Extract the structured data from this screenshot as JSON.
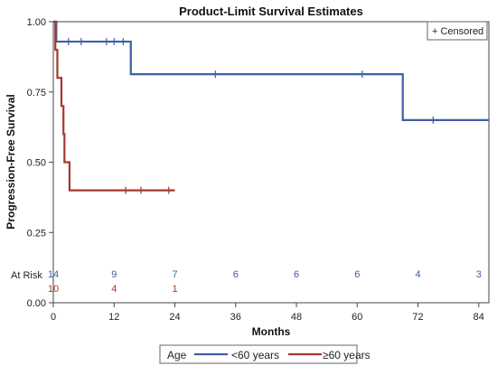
{
  "chart_data": {
    "type": "line",
    "title": "Product-Limit Survival Estimates",
    "xlabel": "Months",
    "ylabel": "Progression-Free Survival",
    "xlim": [
      0,
      86
    ],
    "ylim": [
      0,
      1
    ],
    "x_ticks": [
      0,
      12,
      24,
      36,
      48,
      60,
      72,
      84
    ],
    "x_tick_labels": [
      "0",
      "12",
      "24",
      "36",
      "48",
      "60",
      "72",
      "84"
    ],
    "y_ticks": [
      0.0,
      0.25,
      0.5,
      0.75,
      1.0
    ],
    "y_tick_labels": [
      "0.00",
      "0.25",
      "0.50",
      "0.75",
      "1.00"
    ],
    "grid": false,
    "censor_legend": "+ Censored",
    "at_risk_label": "At Risk",
    "legend": {
      "title": "Age",
      "placement": "bottom"
    },
    "series": [
      {
        "name": "<60 years",
        "color": "#3f5ea4",
        "steps": [
          [
            0,
            1.0
          ],
          [
            0.6,
            1.0
          ],
          [
            0.6,
            0.929
          ],
          [
            15.3,
            0.929
          ],
          [
            15.3,
            0.813
          ],
          [
            69,
            0.813
          ],
          [
            69,
            0.65
          ],
          [
            86,
            0.65
          ]
        ],
        "censored": [
          [
            3,
            0.929
          ],
          [
            5.5,
            0.929
          ],
          [
            10.5,
            0.929
          ],
          [
            12,
            0.929
          ],
          [
            13.8,
            0.929
          ],
          [
            32,
            0.813
          ],
          [
            61,
            0.813
          ],
          [
            75,
            0.65
          ]
        ],
        "at_risk": {
          "times": [
            0,
            12,
            24,
            36,
            48,
            60,
            72,
            84
          ],
          "counts": [
            14,
            9,
            7,
            6,
            6,
            6,
            4,
            3
          ]
        }
      },
      {
        "name": "≥60 years",
        "color": "#a6382e",
        "steps": [
          [
            0,
            1.0
          ],
          [
            0.4,
            1.0
          ],
          [
            0.4,
            0.9
          ],
          [
            0.8,
            0.9
          ],
          [
            0.8,
            0.8
          ],
          [
            1.6,
            0.8
          ],
          [
            1.6,
            0.7
          ],
          [
            2.0,
            0.7
          ],
          [
            2.0,
            0.6
          ],
          [
            2.2,
            0.6
          ],
          [
            2.2,
            0.5
          ],
          [
            3.2,
            0.5
          ],
          [
            3.2,
            0.4
          ],
          [
            24,
            0.4
          ]
        ],
        "censored": [
          [
            14.3,
            0.4
          ],
          [
            17.3,
            0.4
          ],
          [
            22.8,
            0.4
          ]
        ],
        "at_risk": {
          "times": [
            0,
            12,
            24
          ],
          "counts": [
            10,
            4,
            1
          ]
        }
      }
    ]
  }
}
